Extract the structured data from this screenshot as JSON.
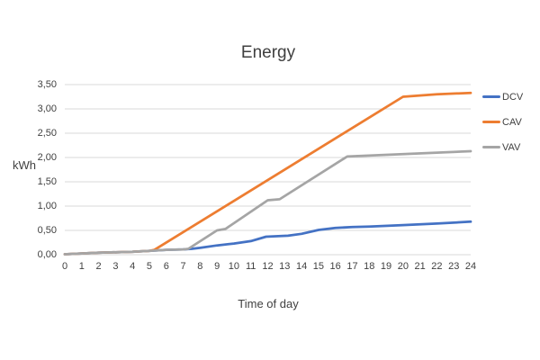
{
  "chart_data": {
    "type": "line",
    "title": "Energy",
    "xlabel": "Time of day",
    "ylabel": "kWh",
    "xlim": [
      0,
      24
    ],
    "ylim": [
      0,
      3.5
    ],
    "grid": "horizontal",
    "gridline_color": "#D9D9D9",
    "text_color": "#404040",
    "legend_position": "right",
    "x_ticks": [
      0,
      1,
      2,
      3,
      4,
      5,
      6,
      7,
      8,
      9,
      10,
      11,
      12,
      13,
      14,
      15,
      16,
      17,
      18,
      19,
      20,
      21,
      22,
      23,
      24
    ],
    "y_ticks": [
      {
        "value": 0,
        "label": "0,00"
      },
      {
        "value": 0.5,
        "label": "0,50"
      },
      {
        "value": 1,
        "label": "1,00"
      },
      {
        "value": 1.5,
        "label": "1,50"
      },
      {
        "value": 2,
        "label": "2,00"
      },
      {
        "value": 2.5,
        "label": "2,50"
      },
      {
        "value": 3,
        "label": "3,00"
      },
      {
        "value": 3.5,
        "label": "3,50"
      }
    ],
    "series": [
      {
        "name": "DCV",
        "color": "#4472C4",
        "points": [
          [
            0,
            0.01
          ],
          [
            2,
            0.04
          ],
          [
            4,
            0.06
          ],
          [
            5,
            0.08
          ],
          [
            6,
            0.1
          ],
          [
            7,
            0.11
          ],
          [
            7.5,
            0.12
          ],
          [
            8,
            0.14
          ],
          [
            9,
            0.19
          ],
          [
            10,
            0.23
          ],
          [
            11,
            0.28
          ],
          [
            11.9,
            0.37
          ],
          [
            13.2,
            0.39
          ],
          [
            14,
            0.43
          ],
          [
            15,
            0.51
          ],
          [
            16,
            0.55
          ],
          [
            17,
            0.57
          ],
          [
            18,
            0.58
          ],
          [
            20,
            0.61
          ],
          [
            22,
            0.64
          ],
          [
            24,
            0.68
          ]
        ]
      },
      {
        "name": "CAV",
        "color": "#ED7D31",
        "points": [
          [
            0,
            0.01
          ],
          [
            2,
            0.04
          ],
          [
            4,
            0.06
          ],
          [
            5,
            0.08
          ],
          [
            5.3,
            0.1
          ],
          [
            20,
            3.25
          ],
          [
            22,
            3.3
          ],
          [
            24,
            3.33
          ]
        ]
      },
      {
        "name": "VAV",
        "color": "#A5A5A5",
        "points": [
          [
            0,
            0.01
          ],
          [
            2,
            0.04
          ],
          [
            4,
            0.06
          ],
          [
            5,
            0.08
          ],
          [
            6,
            0.1
          ],
          [
            7,
            0.11
          ],
          [
            7.3,
            0.12
          ],
          [
            9,
            0.5
          ],
          [
            9.5,
            0.53
          ],
          [
            12,
            1.12
          ],
          [
            12.7,
            1.14
          ],
          [
            16.7,
            2.02
          ],
          [
            24,
            2.13
          ]
        ]
      }
    ]
  }
}
